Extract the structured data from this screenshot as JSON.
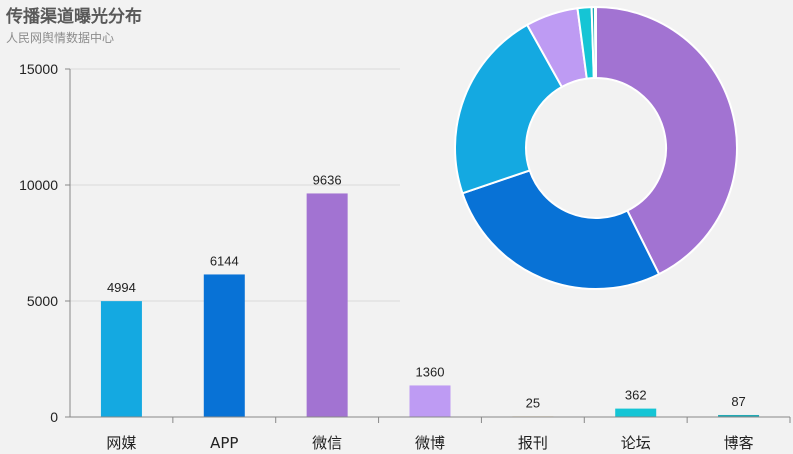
{
  "header": {
    "title": "传播渠道曝光分布",
    "subtitle": "人民网舆情数据中心"
  },
  "chart_data": [
    {
      "type": "bar",
      "categories": [
        "网媒",
        "APP",
        "微信",
        "微博",
        "报刊",
        "论坛",
        "博客"
      ],
      "values": [
        4994,
        6144,
        9636,
        1360,
        25,
        362,
        87
      ],
      "colors": [
        "#14a9e1",
        "#0872d6",
        "#a273d2",
        "#be9bf3",
        "#e5b45a",
        "#15c5d5",
        "#21a9b4"
      ],
      "ylim": [
        0,
        15000
      ],
      "yticks": [
        0,
        5000,
        10000,
        15000
      ],
      "grid": true,
      "data_labels": true
    },
    {
      "type": "pie",
      "donut": true,
      "slices": [
        {
          "category": "微信",
          "value": 9636,
          "color": "#a273d2"
        },
        {
          "category": "APP",
          "value": 6144,
          "color": "#0872d6"
        },
        {
          "category": "网媒",
          "value": 4994,
          "color": "#14a9e1"
        },
        {
          "category": "微博",
          "value": 1360,
          "color": "#be9bf3"
        },
        {
          "category": "论坛",
          "value": 362,
          "color": "#15c5d5"
        },
        {
          "category": "博客",
          "value": 87,
          "color": "#21a9b4"
        },
        {
          "category": "报刊",
          "value": 25,
          "color": "#e5b45a"
        }
      ]
    }
  ]
}
